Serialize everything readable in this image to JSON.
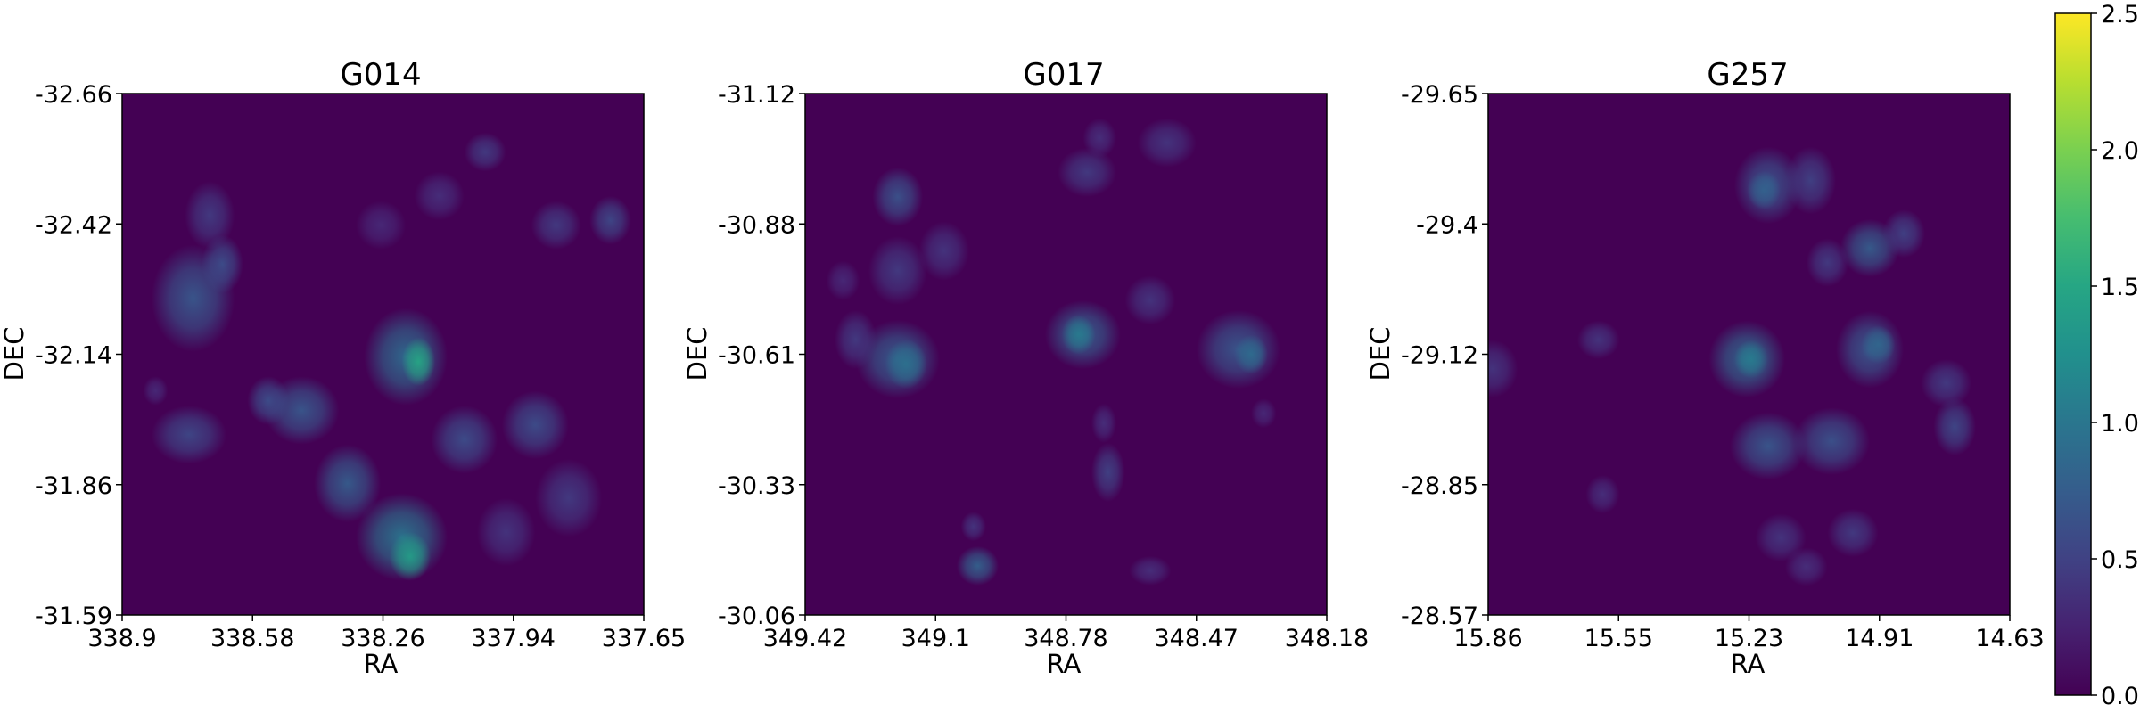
{
  "chart_data": [
    {
      "type": "heatmap",
      "title": "G014",
      "xlabel": "RA",
      "ylabel": "DEC",
      "xticks": [
        "338.9",
        "338.58",
        "338.26",
        "337.94",
        "337.65"
      ],
      "yticks": [
        "-32.66",
        "-32.42",
        "-32.14",
        "-31.86",
        "-31.59"
      ],
      "xlim": [
        338.9,
        337.65
      ],
      "ylim": [
        -32.66,
        -31.59
      ],
      "grid": false,
      "blobs": [
        {
          "x": 338.69,
          "y": -32.41,
          "rx": 0.06,
          "ry": 0.07,
          "v": 0.45
        },
        {
          "x": 338.73,
          "y": -32.24,
          "rx": 0.1,
          "ry": 0.11,
          "v": 0.7
        },
        {
          "x": 338.66,
          "y": -32.31,
          "rx": 0.05,
          "ry": 0.06,
          "v": 0.6
        },
        {
          "x": 338.74,
          "y": -31.96,
          "rx": 0.09,
          "ry": 0.06,
          "v": 0.55
        },
        {
          "x": 338.47,
          "y": -32.01,
          "rx": 0.09,
          "ry": 0.07,
          "v": 0.7
        },
        {
          "x": 338.55,
          "y": -32.03,
          "rx": 0.05,
          "ry": 0.05,
          "v": 0.6
        },
        {
          "x": 338.22,
          "y": -32.12,
          "rx": 0.1,
          "ry": 0.1,
          "v": 0.9
        },
        {
          "x": 338.19,
          "y": -32.11,
          "rx": 0.04,
          "ry": 0.05,
          "v": 1.5
        },
        {
          "x": 338.36,
          "y": -31.86,
          "rx": 0.08,
          "ry": 0.08,
          "v": 0.75
        },
        {
          "x": 338.23,
          "y": -31.75,
          "rx": 0.11,
          "ry": 0.09,
          "v": 1.0
        },
        {
          "x": 338.21,
          "y": -31.71,
          "rx": 0.05,
          "ry": 0.05,
          "v": 1.4
        },
        {
          "x": 338.08,
          "y": -31.95,
          "rx": 0.08,
          "ry": 0.07,
          "v": 0.6
        },
        {
          "x": 337.91,
          "y": -31.98,
          "rx": 0.08,
          "ry": 0.07,
          "v": 0.6
        },
        {
          "x": 337.83,
          "y": -31.83,
          "rx": 0.08,
          "ry": 0.08,
          "v": 0.45
        },
        {
          "x": 337.98,
          "y": -31.76,
          "rx": 0.07,
          "ry": 0.07,
          "v": 0.4
        },
        {
          "x": 338.03,
          "y": -32.54,
          "rx": 0.05,
          "ry": 0.04,
          "v": 0.45
        },
        {
          "x": 338.14,
          "y": -32.45,
          "rx": 0.06,
          "ry": 0.05,
          "v": 0.35
        },
        {
          "x": 338.28,
          "y": -32.39,
          "rx": 0.06,
          "ry": 0.05,
          "v": 0.3
        },
        {
          "x": 337.86,
          "y": -32.39,
          "rx": 0.06,
          "ry": 0.05,
          "v": 0.45
        },
        {
          "x": 337.73,
          "y": -32.4,
          "rx": 0.05,
          "ry": 0.05,
          "v": 0.55
        },
        {
          "x": 338.82,
          "y": -32.05,
          "rx": 0.03,
          "ry": 0.03,
          "v": 0.3
        }
      ]
    },
    {
      "type": "heatmap",
      "title": "G017",
      "xlabel": "RA",
      "ylabel": "DEC",
      "xticks": [
        "349.42",
        "349.1",
        "348.78",
        "348.47",
        "348.18"
      ],
      "yticks": [
        "-31.12",
        "-30.88",
        "-30.61",
        "-30.33",
        "-30.06"
      ],
      "xlim": [
        349.42,
        348.18
      ],
      "ylim": [
        -31.12,
        -30.06
      ],
      "grid": false,
      "blobs": [
        {
          "x": 349.2,
          "y": -30.91,
          "rx": 0.06,
          "ry": 0.06,
          "v": 0.65
        },
        {
          "x": 349.2,
          "y": -30.76,
          "rx": 0.07,
          "ry": 0.07,
          "v": 0.45
        },
        {
          "x": 349.09,
          "y": -30.8,
          "rx": 0.06,
          "ry": 0.06,
          "v": 0.4
        },
        {
          "x": 349.2,
          "y": -30.58,
          "rx": 0.1,
          "ry": 0.08,
          "v": 0.75
        },
        {
          "x": 349.18,
          "y": -30.57,
          "rx": 0.05,
          "ry": 0.05,
          "v": 0.95
        },
        {
          "x": 349.3,
          "y": -30.62,
          "rx": 0.05,
          "ry": 0.06,
          "v": 0.45
        },
        {
          "x": 348.76,
          "y": -30.63,
          "rx": 0.09,
          "ry": 0.07,
          "v": 0.75
        },
        {
          "x": 348.77,
          "y": -30.63,
          "rx": 0.04,
          "ry": 0.04,
          "v": 1.05
        },
        {
          "x": 348.6,
          "y": -30.7,
          "rx": 0.06,
          "ry": 0.05,
          "v": 0.4
        },
        {
          "x": 348.39,
          "y": -30.6,
          "rx": 0.1,
          "ry": 0.08,
          "v": 0.7
        },
        {
          "x": 348.36,
          "y": -30.59,
          "rx": 0.04,
          "ry": 0.04,
          "v": 0.9
        },
        {
          "x": 348.33,
          "y": -30.47,
          "rx": 0.03,
          "ry": 0.03,
          "v": 0.3
        },
        {
          "x": 348.75,
          "y": -30.96,
          "rx": 0.07,
          "ry": 0.05,
          "v": 0.45
        },
        {
          "x": 348.56,
          "y": -31.02,
          "rx": 0.07,
          "ry": 0.05,
          "v": 0.4
        },
        {
          "x": 348.72,
          "y": -31.03,
          "rx": 0.04,
          "ry": 0.04,
          "v": 0.35
        },
        {
          "x": 348.7,
          "y": -30.35,
          "rx": 0.04,
          "ry": 0.06,
          "v": 0.5
        },
        {
          "x": 348.71,
          "y": -30.45,
          "rx": 0.03,
          "ry": 0.04,
          "v": 0.35
        },
        {
          "x": 349.01,
          "y": -30.16,
          "rx": 0.05,
          "ry": 0.04,
          "v": 0.8
        },
        {
          "x": 349.02,
          "y": -30.24,
          "rx": 0.03,
          "ry": 0.03,
          "v": 0.4
        },
        {
          "x": 348.6,
          "y": -30.15,
          "rx": 0.05,
          "ry": 0.03,
          "v": 0.35
        },
        {
          "x": 349.33,
          "y": -30.74,
          "rx": 0.04,
          "ry": 0.04,
          "v": 0.3
        }
      ]
    },
    {
      "type": "heatmap",
      "title": "G257",
      "xlabel": "RA",
      "ylabel": "DEC",
      "xticks": [
        "15.86",
        "15.55",
        "15.23",
        "14.91",
        "14.63"
      ],
      "yticks": [
        "-29.65",
        "-29.4",
        "-29.12",
        "-28.85",
        "-28.57"
      ],
      "xlim": [
        15.86,
        14.63
      ],
      "ylim": [
        -29.65,
        -28.57
      ],
      "grid": false,
      "blobs": [
        {
          "x": 15.2,
          "y": -29.46,
          "rx": 0.08,
          "ry": 0.08,
          "v": 0.65
        },
        {
          "x": 15.21,
          "y": -29.45,
          "rx": 0.04,
          "ry": 0.04,
          "v": 0.8
        },
        {
          "x": 15.1,
          "y": -29.47,
          "rx": 0.06,
          "ry": 0.07,
          "v": 0.5
        },
        {
          "x": 14.96,
          "y": -29.33,
          "rx": 0.07,
          "ry": 0.06,
          "v": 0.75
        },
        {
          "x": 15.06,
          "y": -29.3,
          "rx": 0.05,
          "ry": 0.05,
          "v": 0.45
        },
        {
          "x": 15.25,
          "y": -29.1,
          "rx": 0.09,
          "ry": 0.08,
          "v": 0.85
        },
        {
          "x": 15.24,
          "y": -29.1,
          "rx": 0.04,
          "ry": 0.04,
          "v": 1.05
        },
        {
          "x": 14.96,
          "y": -29.12,
          "rx": 0.08,
          "ry": 0.08,
          "v": 0.7
        },
        {
          "x": 14.94,
          "y": -29.13,
          "rx": 0.04,
          "ry": 0.04,
          "v": 0.85
        },
        {
          "x": 14.78,
          "y": -29.05,
          "rx": 0.06,
          "ry": 0.05,
          "v": 0.45
        },
        {
          "x": 14.76,
          "y": -28.96,
          "rx": 0.05,
          "ry": 0.06,
          "v": 0.55
        },
        {
          "x": 15.2,
          "y": -28.92,
          "rx": 0.09,
          "ry": 0.07,
          "v": 0.7
        },
        {
          "x": 15.05,
          "y": -28.93,
          "rx": 0.09,
          "ry": 0.07,
          "v": 0.65
        },
        {
          "x": 15.17,
          "y": -28.73,
          "rx": 0.06,
          "ry": 0.05,
          "v": 0.4
        },
        {
          "x": 15.0,
          "y": -28.74,
          "rx": 0.06,
          "ry": 0.05,
          "v": 0.45
        },
        {
          "x": 15.11,
          "y": -28.67,
          "rx": 0.05,
          "ry": 0.04,
          "v": 0.35
        },
        {
          "x": 15.85,
          "y": -29.08,
          "rx": 0.06,
          "ry": 0.06,
          "v": 0.4
        },
        {
          "x": 15.6,
          "y": -29.14,
          "rx": 0.05,
          "ry": 0.04,
          "v": 0.4
        },
        {
          "x": 15.59,
          "y": -28.82,
          "rx": 0.04,
          "ry": 0.04,
          "v": 0.35
        },
        {
          "x": 14.88,
          "y": -29.36,
          "rx": 0.05,
          "ry": 0.05,
          "v": 0.5
        }
      ]
    }
  ],
  "colorbar": {
    "colormap": "viridis",
    "min": 0.0,
    "max": 2.5,
    "ticks": [
      "0.0",
      "0.5",
      "1.0",
      "1.5",
      "2.0",
      "2.5"
    ]
  },
  "colors": {
    "background": "#440154",
    "frame": "#000000"
  }
}
